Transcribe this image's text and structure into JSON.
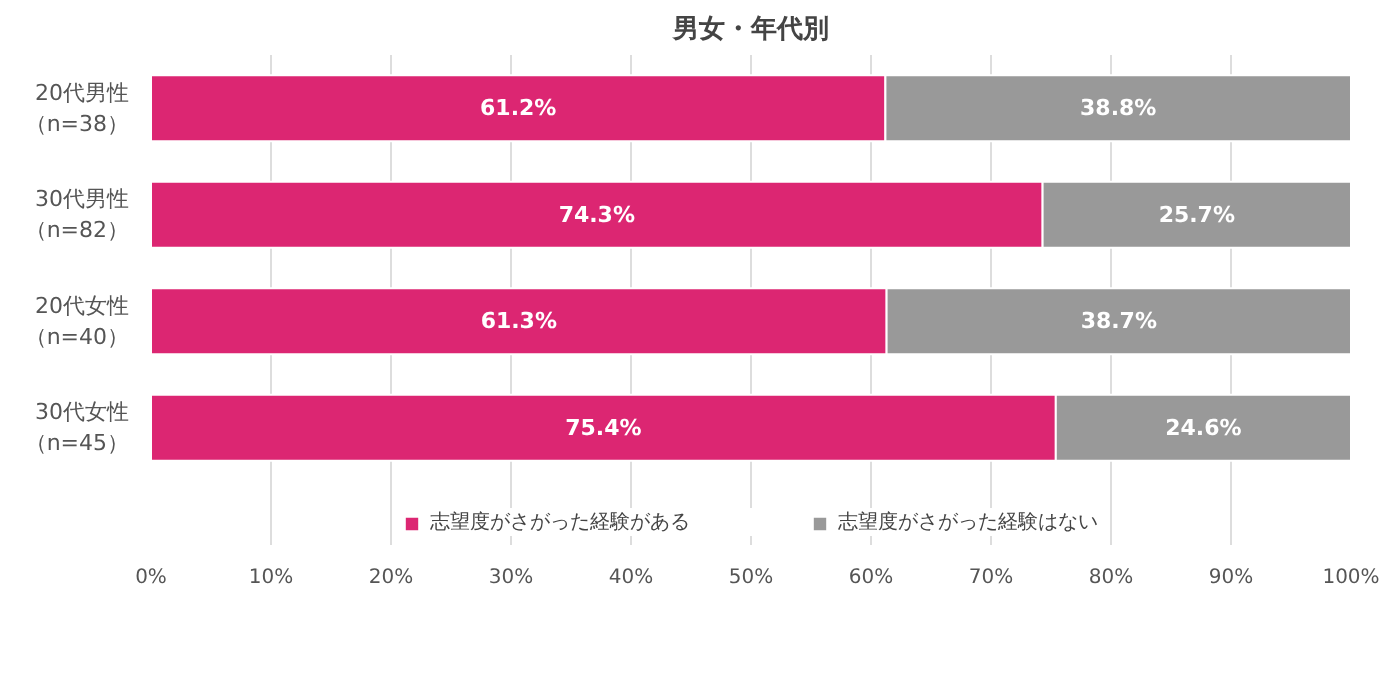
{
  "chart_data": {
    "type": "bar",
    "title": "男女・年代別",
    "orientation": "horizontal",
    "stacked": true,
    "categories": [
      "20代男性（n=38）",
      "30代男性（n=82）",
      "20代女性（n=40）",
      "30代女性（n=45）"
    ],
    "series": [
      {
        "name": "志望度がさがった経験がある",
        "color": "#dc2672",
        "values": [
          61.2,
          74.3,
          61.3,
          75.4
        ]
      },
      {
        "name": "志望度がさがった経験はない",
        "color": "#999999",
        "values": [
          38.8,
          25.7,
          38.7,
          24.6
        ]
      }
    ],
    "xlim": [
      0,
      100
    ],
    "xticks": [
      {
        "value": 0,
        "label": "0%"
      },
      {
        "value": 10,
        "label": "10%"
      },
      {
        "value": 20,
        "label": "20%"
      },
      {
        "value": 30,
        "label": "30%"
      },
      {
        "value": 40,
        "label": "40%"
      },
      {
        "value": 50,
        "label": "50%"
      },
      {
        "value": 60,
        "label": "60%"
      },
      {
        "value": 70,
        "label": "70%"
      },
      {
        "value": 80,
        "label": "80%"
      },
      {
        "value": 90,
        "label": "90%"
      },
      {
        "value": 100,
        "label": "100%"
      }
    ],
    "value_labels": [
      [
        "61.2%",
        "74.3%",
        "61.3%",
        "75.4%"
      ],
      [
        "38.8%",
        "25.7%",
        "38.7%",
        "24.6%"
      ]
    ],
    "grid": "x",
    "legend": "bottom"
  }
}
